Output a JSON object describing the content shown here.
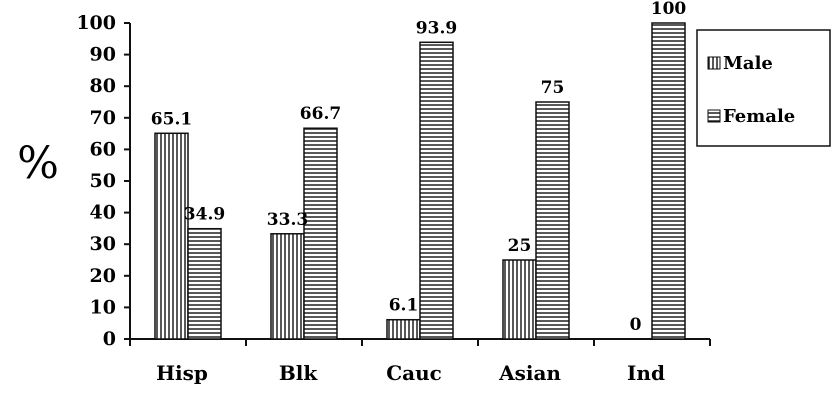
{
  "chart_data": {
    "type": "bar",
    "ylabel": "%",
    "ylim": [
      0,
      100
    ],
    "yticks": [
      0,
      10,
      20,
      30,
      40,
      50,
      60,
      70,
      80,
      90,
      100
    ],
    "categories": [
      "Hisp",
      "Blk",
      "Cauc",
      "Asian",
      "Ind"
    ],
    "series": [
      {
        "name": "Male",
        "values": [
          65.1,
          33.3,
          6.1,
          25,
          0
        ],
        "labels": [
          "65.1",
          "33.3",
          "6.1",
          "25",
          "0"
        ],
        "pattern": "vertical"
      },
      {
        "name": "Female",
        "values": [
          34.9,
          66.7,
          93.9,
          75,
          100
        ],
        "labels": [
          "34.9",
          "66.7",
          "93.9",
          "75",
          "100"
        ],
        "pattern": "horizontal"
      }
    ],
    "legend_position": "right",
    "grid": false
  }
}
